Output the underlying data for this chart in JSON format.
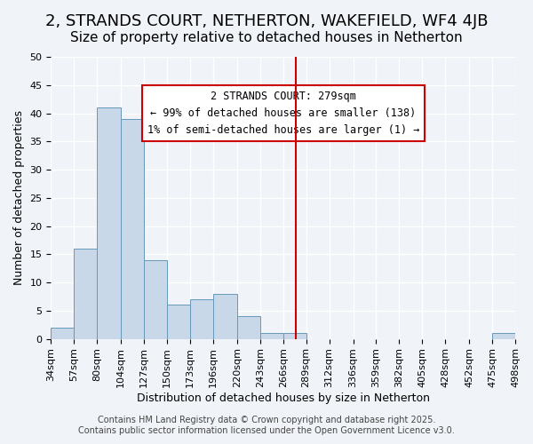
{
  "title": "2, STRANDS COURT, NETHERTON, WAKEFIELD, WF4 4JB",
  "subtitle": "Size of property relative to detached houses in Netherton",
  "xlabel": "Distribution of detached houses by size in Netherton",
  "ylabel": "Number of detached properties",
  "bar_color": "#c8d8e8",
  "bar_edge_color": "#6699bb",
  "background_color": "#f0f4f8",
  "grid_color": "#ffffff",
  "bin_edges": [
    34,
    57,
    80,
    104,
    127,
    150,
    173,
    196,
    220,
    243,
    266,
    289,
    312,
    336,
    359,
    382,
    405,
    428,
    452,
    475,
    498
  ],
  "bin_labels": [
    "34sqm",
    "57sqm",
    "80sqm",
    "104sqm",
    "127sqm",
    "150sqm",
    "173sqm",
    "196sqm",
    "220sqm",
    "243sqm",
    "266sqm",
    "289sqm",
    "312sqm",
    "336sqm",
    "359sqm",
    "382sqm",
    "405sqm",
    "428sqm",
    "452sqm",
    "475sqm",
    "498sqm"
  ],
  "counts": [
    2,
    16,
    41,
    39,
    14,
    6,
    7,
    8,
    4,
    1,
    1,
    0,
    0,
    0,
    0,
    0,
    0,
    0,
    0,
    1
  ],
  "vline_x": 279,
  "vline_color": "#cc0000",
  "annotation_title": "2 STRANDS COURT: 279sqm",
  "annotation_line1": "← 99% of detached houses are smaller (138)",
  "annotation_line2": "1% of semi-detached houses are larger (1) →",
  "annotation_box_color": "#ffffff",
  "annotation_box_edge": "#cc0000",
  "footer1": "Contains HM Land Registry data © Crown copyright and database right 2025.",
  "footer2": "Contains public sector information licensed under the Open Government Licence v3.0.",
  "ylim": [
    0,
    50
  ],
  "title_fontsize": 13,
  "subtitle_fontsize": 11,
  "axis_label_fontsize": 9,
  "tick_fontsize": 8,
  "annotation_fontsize": 8.5,
  "footer_fontsize": 7
}
